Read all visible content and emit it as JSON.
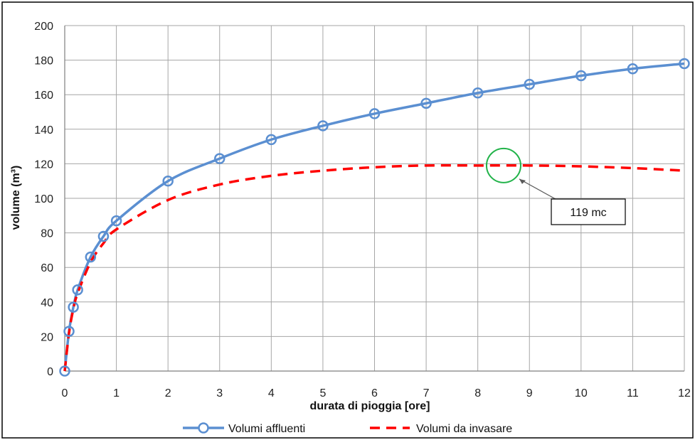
{
  "chart_data": {
    "type": "line",
    "title": "",
    "xlabel": "durata di pioggia [ore]",
    "ylabel": "volume (m³)",
    "xlim": [
      0,
      12
    ],
    "ylim": [
      0,
      200
    ],
    "xticks": [
      0,
      1,
      2,
      3,
      4,
      5,
      6,
      7,
      8,
      9,
      10,
      11,
      12
    ],
    "yticks": [
      0,
      20,
      40,
      60,
      80,
      100,
      120,
      140,
      160,
      180,
      200
    ],
    "grid": true,
    "legend_position": "bottom",
    "series": [
      {
        "name": "Volumi affluenti",
        "color": "#5b8fd1",
        "style": "solid-with-circle-markers",
        "x": [
          0,
          0.083,
          0.167,
          0.25,
          0.5,
          0.75,
          1,
          2,
          3,
          4,
          5,
          6,
          7,
          8,
          9,
          10,
          11,
          12
        ],
        "y": [
          0,
          23,
          37,
          47,
          66,
          78,
          87,
          110,
          123,
          134,
          142,
          149,
          155,
          161,
          166,
          171,
          175,
          178
        ]
      },
      {
        "name": "Volumi da invasare",
        "color": "#ff0000",
        "style": "dashed",
        "x": [
          0,
          0.083,
          0.167,
          0.25,
          0.5,
          0.75,
          1,
          2,
          3,
          4,
          5,
          6,
          7,
          8,
          9,
          10,
          11,
          12
        ],
        "y": [
          0,
          22,
          36,
          45,
          63,
          74,
          82,
          99,
          108,
          113,
          116,
          118,
          119,
          119,
          119,
          118.5,
          117.5,
          116
        ]
      }
    ],
    "annotation": {
      "text": "119 mc",
      "x": 8.5,
      "y": 119,
      "highlight_color": "#22b34a"
    }
  }
}
